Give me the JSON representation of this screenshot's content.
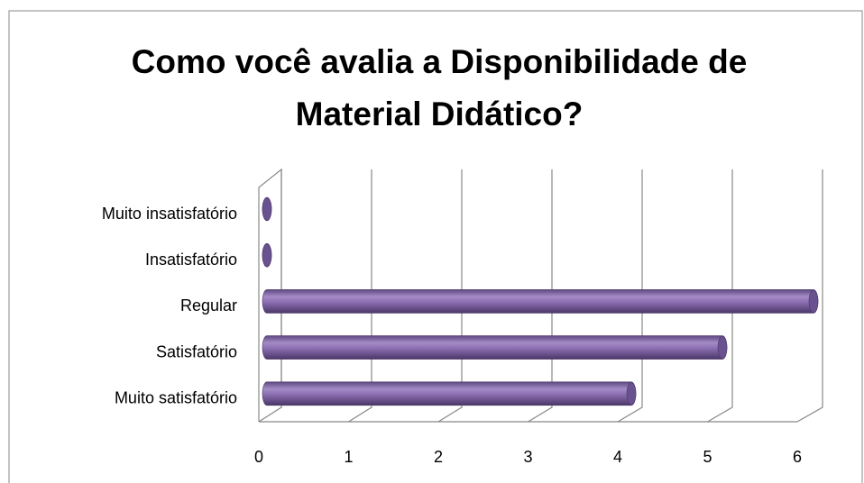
{
  "chart_data": {
    "type": "bar",
    "title": "Como você avalia a Disponibilidade de Material Didático?",
    "categories": [
      "Muito insatisfatório",
      "Insatisfatório",
      "Regular",
      "Satisfatório",
      "Muito satisfatório"
    ],
    "values": [
      0,
      0,
      6,
      5,
      4
    ],
    "color": "#8064a2",
    "xlim": [
      0,
      6
    ],
    "xticks": [
      0,
      1,
      2,
      3,
      4,
      5,
      6
    ],
    "grid": true
  }
}
